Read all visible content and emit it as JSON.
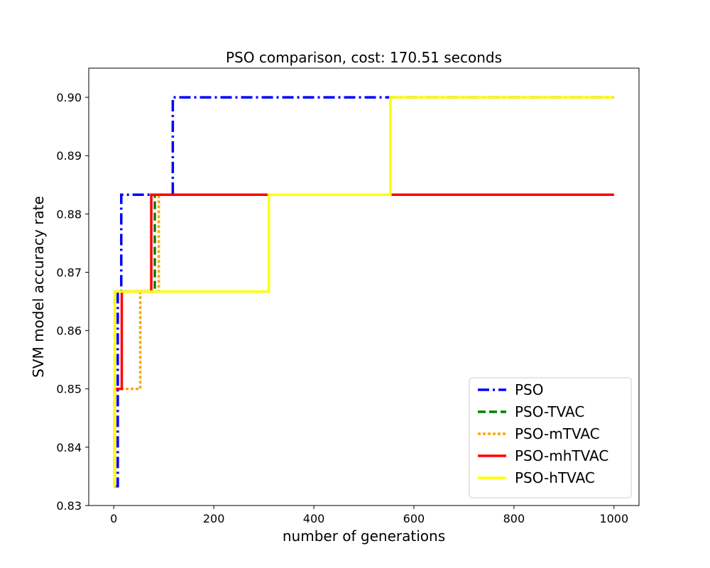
{
  "chart_data": {
    "type": "line",
    "title": "PSO comparison, cost: 170.51 seconds",
    "xlabel": "number of generations",
    "ylabel": "SVM model accuracy rate",
    "xlim": [
      -50,
      1050
    ],
    "ylim": [
      0.83,
      0.905
    ],
    "xticks": [
      0,
      200,
      400,
      600,
      800,
      1000
    ],
    "yticks": [
      0.83,
      0.84,
      0.85,
      0.86,
      0.87,
      0.88,
      0.89,
      0.9
    ],
    "xtick_labels": [
      "0",
      "200",
      "400",
      "600",
      "800",
      "1000"
    ],
    "ytick_labels": [
      "0.83",
      "0.84",
      "0.85",
      "0.86",
      "0.87",
      "0.88",
      "0.89",
      "0.90"
    ],
    "grid": false,
    "legend_position": "bottom-right",
    "step": "post",
    "series": [
      {
        "name": "PSO",
        "color": "#0000ff",
        "style": "dashdot",
        "x": [
          3,
          6,
          8,
          15,
          118,
          1000
        ],
        "y": [
          0.8333,
          0.8333,
          0.8667,
          0.8833,
          0.9,
          0.9
        ]
      },
      {
        "name": "PSO-TVAC",
        "color": "#008000",
        "style": "dashed",
        "x": [
          0,
          2,
          15,
          82,
          1000
        ],
        "y": [
          0.8333,
          0.8667,
          0.8667,
          0.8833,
          0.8833
        ]
      },
      {
        "name": "PSO-mTVAC",
        "color": "#ffa500",
        "style": "dotted",
        "x": [
          0,
          2,
          53,
          90,
          1000
        ],
        "y": [
          0.8333,
          0.85,
          0.8667,
          0.8833,
          0.8833
        ]
      },
      {
        "name": "PSO-mhTVAC",
        "color": "#ff0000",
        "style": "solid",
        "x": [
          0,
          2,
          16,
          75,
          1000
        ],
        "y": [
          0.8333,
          0.85,
          0.8667,
          0.8833,
          0.8833
        ]
      },
      {
        "name": "PSO-hTVAC",
        "color": "#ffff00",
        "style": "solid",
        "x": [
          0,
          2,
          310,
          553,
          1000
        ],
        "y": [
          0.8333,
          0.8667,
          0.8833,
          0.9,
          0.9
        ]
      }
    ]
  }
}
